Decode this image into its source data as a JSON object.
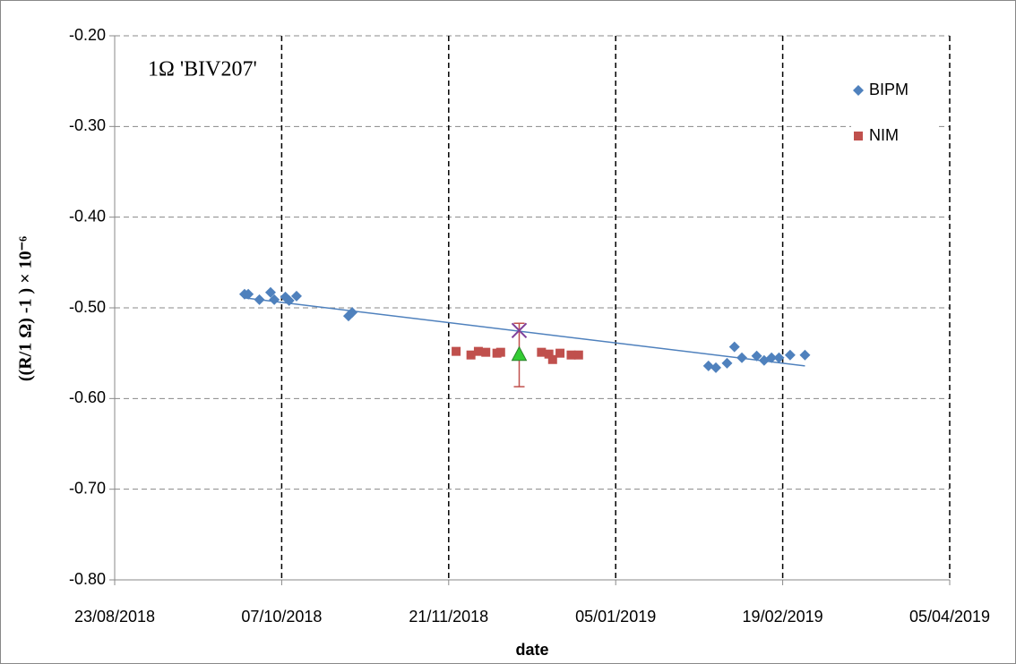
{
  "chart_data": {
    "type": "scatter",
    "annotation": "1Ω 'BIV207'",
    "x_label": "date",
    "y_label": "((R/1 Ω) -1 ) × 10⁻⁶",
    "xlim": [
      "23/08/2018",
      "05/04/2019"
    ],
    "xticks": [
      "23/08/2018",
      "07/10/2018",
      "21/11/2018",
      "05/01/2019",
      "19/02/2019",
      "05/04/2019"
    ],
    "ylim": [
      -0.8,
      -0.2
    ],
    "yticks": [
      {
        "value": -0.8,
        "label": "-0.80"
      },
      {
        "value": -0.7,
        "label": "-0.70"
      },
      {
        "value": -0.6,
        "label": "-0.60"
      },
      {
        "value": -0.5,
        "label": "-0.50"
      },
      {
        "value": -0.4,
        "label": "-0.40"
      },
      {
        "value": -0.3,
        "label": "-0.30"
      },
      {
        "value": -0.2,
        "label": "-0.20"
      }
    ],
    "grid": true,
    "legend": "top-right",
    "series": [
      {
        "name": "BIPM",
        "color": "#4f81bd",
        "marker": "diamond",
        "x": [
          "27/09/2018",
          "28/09/2018",
          "01/10/2018",
          "04/10/2018",
          "05/10/2018",
          "08/10/2018",
          "09/10/2018",
          "11/10/2018",
          "25/10/2018",
          "26/10/2018",
          "30/01/2019",
          "01/02/2019",
          "04/02/2019",
          "06/02/2019",
          "08/02/2019",
          "12/02/2019",
          "14/02/2019",
          "16/02/2019",
          "18/02/2019",
          "21/02/2019",
          "25/02/2019"
        ],
        "values": [
          -0.485,
          -0.485,
          -0.491,
          -0.483,
          -0.491,
          -0.488,
          -0.492,
          -0.487,
          -0.509,
          -0.505,
          -0.564,
          -0.566,
          -0.561,
          -0.543,
          -0.555,
          -0.553,
          -0.558,
          -0.555,
          -0.555,
          -0.552,
          -0.552
        ]
      },
      {
        "name": "NIM",
        "color": "#c0504d",
        "marker": "square",
        "x": [
          "23/11/2018",
          "27/11/2018",
          "29/11/2018",
          "01/12/2018",
          "04/12/2018",
          "05/12/2018",
          "16/12/2018",
          "18/12/2018",
          "19/12/2018",
          "21/12/2018",
          "24/12/2018",
          "26/12/2018"
        ],
        "values": [
          -0.548,
          -0.552,
          -0.548,
          -0.549,
          -0.55,
          -0.549,
          -0.549,
          -0.551,
          -0.557,
          -0.55,
          -0.552,
          -0.552
        ]
      },
      {
        "color": "#4f81bd",
        "marker": "line",
        "x": [
          "27/09/2018",
          "25/02/2019"
        ],
        "values": [
          -0.489,
          -0.564
        ]
      },
      {
        "color": "#33cc33",
        "marker": "triangle",
        "error_color": "#c0504d",
        "x": [
          "10/12/2018"
        ],
        "values": [
          -0.552
        ],
        "errors": [
          0.035
        ]
      },
      {
        "color": "#7f3f98",
        "marker": "cross",
        "x": [
          "10/12/2018"
        ],
        "values": [
          -0.525
        ]
      }
    ]
  }
}
